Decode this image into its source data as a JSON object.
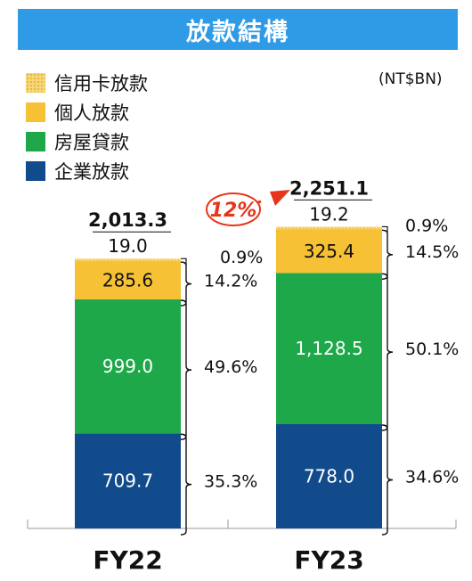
{
  "colors": {
    "title_bg": "#2f9be6",
    "credit_card": "#f6d77a",
    "personal": "#f7c135",
    "mortgage": "#1ea84a",
    "corporate": "#124b8c",
    "growth_arrow": "#e8341c"
  },
  "legend_icons": [
    "dotted-swatch",
    "yellow-swatch",
    "green-swatch",
    "navy-swatch"
  ],
  "chart_data": {
    "type": "bar",
    "stacked": true,
    "title": "放款結構",
    "unit": "(NT$BN)",
    "categories": [
      "FY22",
      "FY23"
    ],
    "series": [
      {
        "name": "企業放款",
        "values": [
          709.7,
          778.0
        ],
        "labels": [
          "709.7",
          "778.0"
        ],
        "shares": [
          "35.3%",
          "34.6%"
        ],
        "color": "#124b8c"
      },
      {
        "name": "房屋貸款",
        "values": [
          999.0,
          1128.5
        ],
        "labels": [
          "999.0",
          "1,128.5"
        ],
        "shares": [
          "49.6%",
          "50.1%"
        ],
        "color": "#1ea84a"
      },
      {
        "name": "個人放款",
        "values": [
          285.6,
          325.4
        ],
        "labels": [
          "285.6",
          "325.4"
        ],
        "shares": [
          "14.2%",
          "14.5%"
        ],
        "color": "#f7c135"
      },
      {
        "name": "信用卡放款",
        "values": [
          19.0,
          19.2
        ],
        "labels": [
          "19.0",
          "19.2"
        ],
        "shares": [
          "0.9%",
          "0.9%"
        ],
        "color": "#f6d77a"
      }
    ],
    "legend_order": [
      "信用卡放款",
      "個人放款",
      "房屋貸款",
      "企業放款"
    ],
    "totals": [
      "2,013.3",
      "2,251.1"
    ],
    "growth_label": "12%",
    "legend_position": "top-left",
    "grid": false
  }
}
